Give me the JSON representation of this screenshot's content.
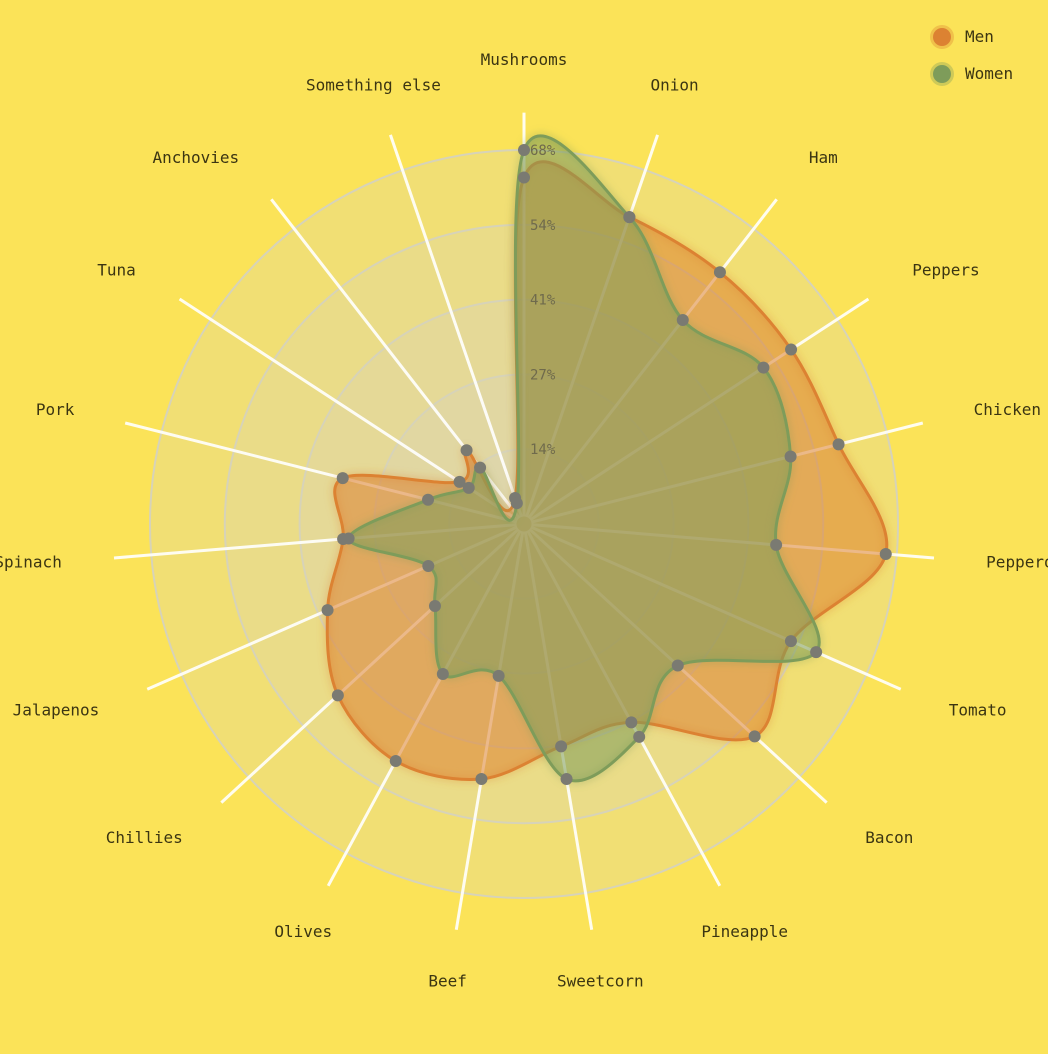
{
  "chart_data": {
    "type": "radar",
    "categories": [
      "Mushrooms",
      "Onion",
      "Ham",
      "Peppers",
      "Chicken",
      "Pepperoni",
      "Tomato",
      "Bacon",
      "Pineapple",
      "Sweetcorn",
      "Beef",
      "Olives",
      "Chillies",
      "Jalapenos",
      "Spinach",
      "Pork",
      "Tuna",
      "Anchovies",
      "Something else"
    ],
    "tick_labels": [
      "14%",
      "27%",
      "41%",
      "54%",
      "68%"
    ],
    "rlim": [
      0,
      68
    ],
    "legend_position": "top-right",
    "series": [
      {
        "name": "Men",
        "color": "#DC8232",
        "values": [
          63,
          59,
          58,
          58,
          59,
          66,
          53,
          57,
          41,
          41,
          47,
          49,
          46,
          39,
          33,
          34,
          14,
          17,
          5
        ]
      },
      {
        "name": "Women",
        "color": "#7E9C5A",
        "values": [
          68,
          59,
          47,
          52,
          50,
          46,
          58,
          38,
          44,
          47,
          28,
          31,
          22,
          19,
          32,
          18,
          12,
          13,
          4
        ]
      }
    ]
  }
}
